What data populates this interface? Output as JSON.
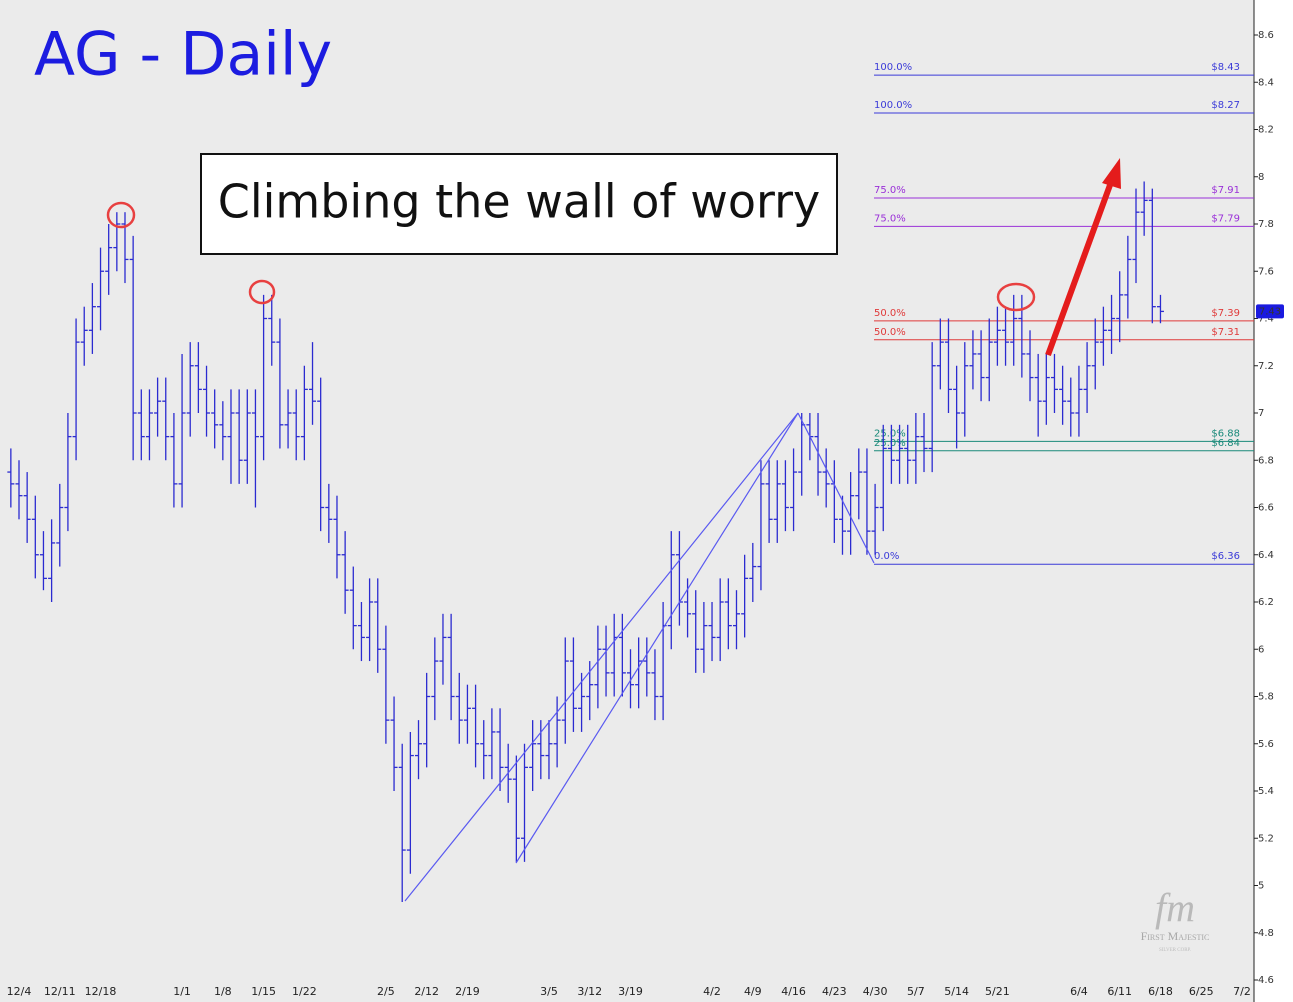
{
  "chart_data": {
    "type": "ohlc",
    "title": "AG - Daily",
    "annotation": "Climbing the wall of worry",
    "logo": {
      "mark": "fm",
      "name": "First Majestic",
      "tagline": "SILVER CORP."
    },
    "color": "#2b2bd0",
    "ylim": [
      4.6,
      8.6
    ],
    "yticks": [
      4.6,
      4.8,
      5,
      5.2,
      5.4,
      5.6,
      5.8,
      6,
      6.2,
      6.4,
      6.6,
      6.8,
      7,
      7.2,
      7.4,
      7.6,
      7.8,
      8,
      8.2,
      8.4,
      8.6
    ],
    "last_price": 7.43,
    "categories": [
      null,
      "12/4",
      null,
      null,
      null,
      null,
      "12/11",
      null,
      null,
      null,
      null,
      "12/18",
      null,
      null,
      null,
      null,
      null,
      null,
      null,
      null,
      null,
      "1/1",
      null,
      null,
      null,
      null,
      "1/8",
      null,
      null,
      null,
      null,
      "1/15",
      null,
      null,
      null,
      null,
      "1/22",
      null,
      null,
      null,
      null,
      null,
      null,
      null,
      null,
      null,
      "2/5",
      null,
      null,
      null,
      null,
      "2/12",
      null,
      null,
      null,
      null,
      "2/19",
      null,
      null,
      null,
      null,
      null,
      null,
      null,
      null,
      null,
      "3/5",
      null,
      null,
      null,
      null,
      "3/12",
      null,
      null,
      null,
      null,
      "3/19",
      null,
      null,
      null,
      null,
      null,
      null,
      null,
      null,
      null,
      "4/2",
      null,
      null,
      null,
      null,
      "4/9",
      null,
      null,
      null,
      null,
      "4/16",
      null,
      null,
      null,
      null,
      "4/23",
      null,
      null,
      null,
      null,
      "4/30",
      null,
      null,
      null,
      null,
      "5/7",
      null,
      null,
      null,
      null,
      "5/14",
      null,
      null,
      null,
      null,
      "5/21",
      null,
      null,
      null,
      null,
      null,
      null,
      null,
      null,
      null,
      "6/4",
      null,
      null,
      null,
      null,
      "6/11",
      null,
      null,
      null,
      null,
      "6/18",
      null,
      null,
      null,
      null,
      "6/25",
      null,
      null,
      null,
      null,
      "7/2",
      null,
      null,
      null,
      null
    ],
    "ohlc": [
      [
        6.75,
        6.85,
        6.6,
        6.7
      ],
      [
        6.7,
        6.8,
        6.55,
        6.65
      ],
      [
        6.65,
        6.75,
        6.45,
        6.55
      ],
      [
        6.55,
        6.65,
        6.3,
        6.4
      ],
      [
        6.4,
        6.5,
        6.25,
        6.3
      ],
      [
        6.3,
        6.55,
        6.2,
        6.45
      ],
      [
        6.45,
        6.7,
        6.35,
        6.6
      ],
      [
        6.6,
        7.0,
        6.5,
        6.9
      ],
      [
        6.9,
        7.4,
        6.8,
        7.3
      ],
      [
        7.3,
        7.45,
        7.2,
        7.35
      ],
      [
        7.35,
        7.55,
        7.25,
        7.45
      ],
      [
        7.45,
        7.7,
        7.35,
        7.6
      ],
      [
        7.6,
        7.8,
        7.5,
        7.7
      ],
      [
        7.7,
        7.85,
        7.6,
        7.8
      ],
      [
        7.8,
        7.85,
        7.55,
        7.65
      ],
      [
        7.65,
        7.75,
        6.8,
        7.0
      ],
      [
        7.0,
        7.1,
        6.8,
        6.9
      ],
      [
        6.9,
        7.1,
        6.8,
        7.0
      ],
      [
        7.0,
        7.15,
        6.9,
        7.05
      ],
      [
        7.05,
        7.15,
        6.8,
        6.9
      ],
      [
        6.9,
        7.0,
        6.6,
        6.7
      ],
      [
        6.7,
        7.25,
        6.6,
        7.0
      ],
      [
        7.0,
        7.3,
        6.9,
        7.2
      ],
      [
        7.2,
        7.3,
        7.0,
        7.1
      ],
      [
        7.1,
        7.2,
        6.9,
        7.0
      ],
      [
        7.0,
        7.1,
        6.85,
        6.95
      ],
      [
        6.95,
        7.05,
        6.8,
        6.9
      ],
      [
        6.9,
        7.1,
        6.7,
        7.0
      ],
      [
        7.0,
        7.1,
        6.7,
        6.8
      ],
      [
        6.8,
        7.1,
        6.7,
        7.0
      ],
      [
        7.0,
        7.1,
        6.6,
        6.9
      ],
      [
        6.9,
        7.5,
        6.8,
        7.4
      ],
      [
        7.4,
        7.5,
        7.2,
        7.3
      ],
      [
        7.3,
        7.4,
        6.85,
        6.95
      ],
      [
        6.95,
        7.1,
        6.85,
        7.0
      ],
      [
        7.0,
        7.1,
        6.8,
        6.9
      ],
      [
        6.9,
        7.2,
        6.8,
        7.1
      ],
      [
        7.1,
        7.3,
        6.95,
        7.05
      ],
      [
        7.05,
        7.15,
        6.5,
        6.6
      ],
      [
        6.6,
        6.7,
        6.45,
        6.55
      ],
      [
        6.55,
        6.65,
        6.3,
        6.4
      ],
      [
        6.4,
        6.5,
        6.15,
        6.25
      ],
      [
        6.25,
        6.35,
        6.0,
        6.1
      ],
      [
        6.1,
        6.2,
        5.95,
        6.05
      ],
      [
        6.05,
        6.3,
        5.95,
        6.2
      ],
      [
        6.2,
        6.3,
        5.9,
        6.0
      ],
      [
        6.0,
        6.1,
        5.6,
        5.7
      ],
      [
        5.7,
        5.8,
        5.4,
        5.5
      ],
      [
        5.5,
        5.6,
        4.93,
        5.15
      ],
      [
        5.15,
        5.65,
        5.05,
        5.55
      ],
      [
        5.55,
        5.7,
        5.45,
        5.6
      ],
      [
        5.6,
        5.9,
        5.5,
        5.8
      ],
      [
        5.8,
        6.05,
        5.7,
        5.95
      ],
      [
        5.95,
        6.15,
        5.85,
        6.05
      ],
      [
        6.05,
        6.15,
        5.7,
        5.8
      ],
      [
        5.8,
        5.9,
        5.6,
        5.7
      ],
      [
        5.7,
        5.85,
        5.6,
        5.75
      ],
      [
        5.75,
        5.85,
        5.5,
        5.6
      ],
      [
        5.6,
        5.7,
        5.45,
        5.55
      ],
      [
        5.55,
        5.75,
        5.45,
        5.65
      ],
      [
        5.65,
        5.75,
        5.4,
        5.5
      ],
      [
        5.5,
        5.6,
        5.35,
        5.45
      ],
      [
        5.45,
        5.55,
        5.1,
        5.2
      ],
      [
        5.2,
        5.6,
        5.1,
        5.5
      ],
      [
        5.5,
        5.7,
        5.4,
        5.6
      ],
      [
        5.6,
        5.7,
        5.45,
        5.55
      ],
      [
        5.55,
        5.7,
        5.45,
        5.6
      ],
      [
        5.6,
        5.8,
        5.5,
        5.7
      ],
      [
        5.7,
        6.05,
        5.6,
        5.95
      ],
      [
        5.95,
        6.05,
        5.65,
        5.75
      ],
      [
        5.75,
        5.9,
        5.65,
        5.8
      ],
      [
        5.8,
        5.95,
        5.7,
        5.85
      ],
      [
        5.85,
        6.1,
        5.75,
        6.0
      ],
      [
        6.0,
        6.1,
        5.8,
        5.9
      ],
      [
        5.9,
        6.15,
        5.8,
        6.05
      ],
      [
        6.05,
        6.15,
        5.8,
        5.9
      ],
      [
        5.9,
        6.0,
        5.75,
        5.85
      ],
      [
        5.85,
        6.05,
        5.75,
        5.95
      ],
      [
        5.95,
        6.05,
        5.8,
        5.9
      ],
      [
        5.9,
        6.0,
        5.7,
        5.8
      ],
      [
        5.8,
        6.2,
        5.7,
        6.1
      ],
      [
        6.1,
        6.5,
        6.0,
        6.4
      ],
      [
        6.4,
        6.5,
        6.1,
        6.2
      ],
      [
        6.2,
        6.3,
        6.05,
        6.15
      ],
      [
        6.15,
        6.25,
        5.9,
        6.0
      ],
      [
        6.0,
        6.2,
        5.9,
        6.1
      ],
      [
        6.1,
        6.2,
        5.95,
        6.05
      ],
      [
        6.05,
        6.3,
        5.95,
        6.2
      ],
      [
        6.2,
        6.3,
        6.0,
        6.1
      ],
      [
        6.1,
        6.25,
        6.0,
        6.15
      ],
      [
        6.15,
        6.4,
        6.05,
        6.3
      ],
      [
        6.3,
        6.45,
        6.2,
        6.35
      ],
      [
        6.35,
        6.8,
        6.25,
        6.7
      ],
      [
        6.7,
        6.8,
        6.45,
        6.55
      ],
      [
        6.55,
        6.8,
        6.45,
        6.7
      ],
      [
        6.7,
        6.8,
        6.5,
        6.6
      ],
      [
        6.6,
        6.85,
        6.5,
        6.75
      ],
      [
        6.75,
        7.0,
        6.65,
        6.95
      ],
      [
        6.95,
        7.0,
        6.8,
        6.9
      ],
      [
        6.9,
        7.0,
        6.65,
        6.75
      ],
      [
        6.75,
        6.85,
        6.6,
        6.7
      ],
      [
        6.7,
        6.8,
        6.45,
        6.55
      ],
      [
        6.55,
        6.65,
        6.4,
        6.5
      ],
      [
        6.5,
        6.75,
        6.4,
        6.65
      ],
      [
        6.65,
        6.85,
        6.55,
        6.75
      ],
      [
        6.75,
        6.85,
        6.4,
        6.5
      ],
      [
        6.5,
        6.7,
        6.4,
        6.6
      ],
      [
        6.6,
        6.95,
        6.5,
        6.85
      ],
      [
        6.85,
        6.95,
        6.7,
        6.8
      ],
      [
        6.8,
        6.95,
        6.7,
        6.85
      ],
      [
        6.85,
        6.95,
        6.7,
        6.8
      ],
      [
        6.8,
        7.0,
        6.7,
        6.9
      ],
      [
        6.9,
        7.0,
        6.75,
        6.85
      ],
      [
        6.85,
        7.3,
        6.75,
        7.2
      ],
      [
        7.2,
        7.4,
        7.1,
        7.3
      ],
      [
        7.3,
        7.4,
        7.0,
        7.1
      ],
      [
        7.1,
        7.2,
        6.85,
        7.0
      ],
      [
        7.0,
        7.3,
        6.9,
        7.2
      ],
      [
        7.2,
        7.35,
        7.1,
        7.25
      ],
      [
        7.25,
        7.35,
        7.05,
        7.15
      ],
      [
        7.15,
        7.4,
        7.05,
        7.3
      ],
      [
        7.3,
        7.45,
        7.2,
        7.35
      ],
      [
        7.35,
        7.45,
        7.2,
        7.3
      ],
      [
        7.3,
        7.5,
        7.2,
        7.4
      ],
      [
        7.4,
        7.5,
        7.15,
        7.25
      ],
      [
        7.25,
        7.35,
        7.05,
        7.15
      ],
      [
        7.15,
        7.25,
        6.9,
        7.05
      ],
      [
        7.05,
        7.25,
        6.95,
        7.15
      ],
      [
        7.15,
        7.25,
        7.0,
        7.1
      ],
      [
        7.1,
        7.2,
        6.95,
        7.05
      ],
      [
        7.05,
        7.15,
        6.9,
        7.0
      ],
      [
        7.0,
        7.2,
        6.9,
        7.1
      ],
      [
        7.1,
        7.3,
        7.0,
        7.2
      ],
      [
        7.2,
        7.4,
        7.1,
        7.3
      ],
      [
        7.3,
        7.45,
        7.2,
        7.35
      ],
      [
        7.35,
        7.5,
        7.25,
        7.4
      ],
      [
        7.4,
        7.6,
        7.3,
        7.5
      ],
      [
        7.5,
        7.75,
        7.4,
        7.65
      ],
      [
        7.65,
        7.95,
        7.55,
        7.85
      ],
      [
        7.85,
        7.98,
        7.75,
        7.9
      ],
      [
        7.9,
        7.95,
        7.38,
        7.45
      ],
      [
        7.45,
        7.5,
        7.38,
        7.43
      ],
      null,
      null,
      null,
      null,
      null,
      null,
      null,
      null,
      null,
      null,
      null,
      null,
      null,
      null
    ],
    "fib_levels": [
      {
        "pct": "100.0%",
        "value": 8.43,
        "label": "$8.43",
        "color": "#3a3ad8"
      },
      {
        "pct": "100.0%",
        "value": 8.27,
        "label": "$8.27",
        "color": "#3a3ad8"
      },
      {
        "pct": "75.0%",
        "value": 7.91,
        "label": "$7.91",
        "color": "#9a30d8"
      },
      {
        "pct": "75.0%",
        "value": 7.79,
        "label": "$7.79",
        "color": "#9a30d8"
      },
      {
        "pct": "50.0%",
        "value": 7.39,
        "label": "$7.39",
        "color": "#e03a3a"
      },
      {
        "pct": "50.0%",
        "value": 7.31,
        "label": "$7.31",
        "color": "#e03a3a"
      },
      {
        "pct": "25.0%",
        "value": 6.88,
        "label": "$6.88",
        "color": "#1a8a7a"
      },
      {
        "pct": "25.0%",
        "value": 6.84,
        "label": "$6.84",
        "color": "#1a8a7a"
      },
      {
        "pct": "0.0%",
        "value": 6.36,
        "label": "$6.36",
        "color": "#3a3ad8"
      }
    ]
  }
}
